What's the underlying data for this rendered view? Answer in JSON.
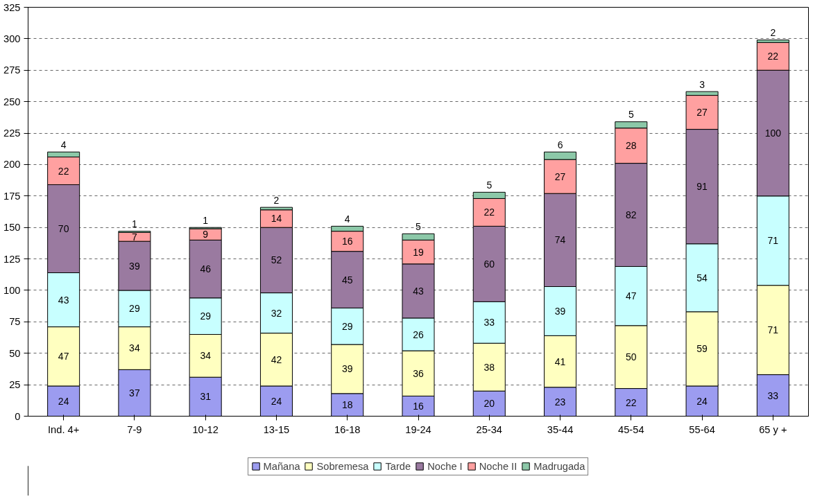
{
  "chart_data": {
    "type": "bar",
    "stacked": true,
    "data_labels": true,
    "grid": "y",
    "legend": "bottom",
    "categories": [
      "Ind. 4+",
      "7-9",
      "10-12",
      "13-15",
      "16-18",
      "19-24",
      "25-34",
      "35-44",
      "45-54",
      "55-64",
      "65 y +"
    ],
    "ylim": [
      0,
      325
    ],
    "yticks": [
      0,
      25,
      50,
      75,
      100,
      125,
      150,
      175,
      200,
      225,
      250,
      275,
      300,
      325
    ],
    "series": [
      {
        "name": "Mañana",
        "color": "#9c9cf0",
        "values": [
          24,
          37,
          31,
          24,
          18,
          16,
          20,
          23,
          22,
          24,
          33
        ]
      },
      {
        "name": "Sobremesa",
        "color": "#ffffc0",
        "values": [
          47,
          34,
          34,
          42,
          39,
          36,
          38,
          41,
          50,
          59,
          71
        ]
      },
      {
        "name": "Tarde",
        "color": "#c8ffff",
        "values": [
          43,
          29,
          29,
          32,
          29,
          26,
          33,
          39,
          47,
          54,
          71
        ]
      },
      {
        "name": "Noche I",
        "color": "#9a7aa0",
        "values": [
          70,
          39,
          46,
          52,
          45,
          43,
          60,
          74,
          82,
          91,
          100
        ]
      },
      {
        "name": "Noche II",
        "color": "#ffa0a0",
        "values": [
          22,
          7,
          9,
          14,
          16,
          19,
          22,
          27,
          28,
          27,
          22
        ]
      },
      {
        "name": "Madrugada",
        "color": "#8cc8a8",
        "values": [
          4,
          1,
          1,
          2,
          4,
          5,
          5,
          6,
          5,
          3,
          2
        ]
      }
    ]
  }
}
